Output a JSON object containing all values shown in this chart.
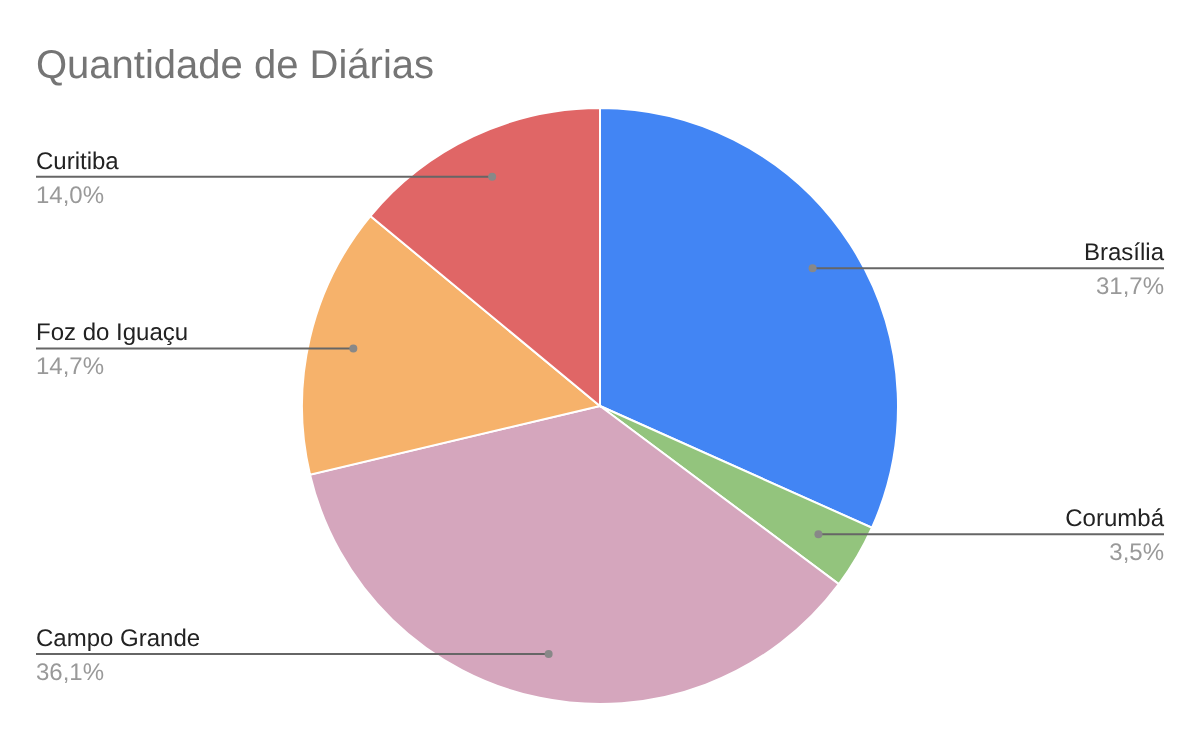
{
  "chart_data": {
    "type": "pie",
    "title": "Quantidade de Diárias",
    "categories": [
      "Brasília",
      "Corumbá",
      "Campo Grande",
      "Foz do Iguaçu",
      "Curitiba"
    ],
    "values": [
      31.7,
      3.5,
      36.1,
      14.7,
      14.0
    ],
    "value_labels": [
      "31,7%",
      "3,5%",
      "36,1%",
      "14,7%",
      "14,0%"
    ],
    "colors": [
      "#4285f4",
      "#93c47d",
      "#d5a6bd",
      "#f6b26b",
      "#e06666"
    ],
    "legend": false
  }
}
